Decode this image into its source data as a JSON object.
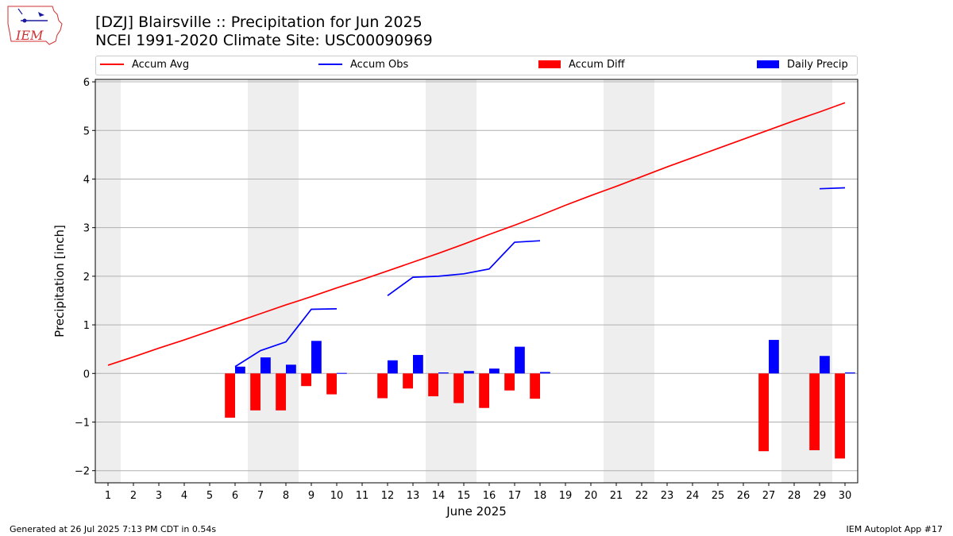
{
  "header": {
    "logo_text": "IEM",
    "title_line1": "[DZJ] Blairsville :: Precipitation for Jun 2025",
    "title_line2": "NCEI 1991-2020 Climate Site: USC00090969"
  },
  "footer": {
    "generated": "Generated at 26 Jul 2025 7:13 PM CDT in 0.54s",
    "app": "IEM Autoplot App #17"
  },
  "legend": {
    "accum_avg": "Accum Avg",
    "accum_obs": "Accum Obs",
    "accum_diff": "Accum Diff",
    "daily_precip": "Daily Precip"
  },
  "colors": {
    "avg": "#ff0000",
    "obs": "#0000ff",
    "diff": "#ff0000",
    "daily": "#0000ff",
    "weekend": "#eeeeee",
    "grid": "#b0b0b0"
  },
  "chart_data": {
    "type": "bar",
    "xlabel": "June 2025",
    "ylabel": "Precipitation [inch]",
    "xlim": [
      0.5,
      30.5
    ],
    "ylim": [
      -2.25,
      6.05
    ],
    "yticks": [
      -2,
      -1,
      0,
      1,
      2,
      3,
      4,
      5,
      6
    ],
    "ytick_labels": [
      "−2",
      "−1",
      "0",
      "1",
      "2",
      "3",
      "4",
      "5",
      "6"
    ],
    "days": [
      1,
      2,
      3,
      4,
      5,
      6,
      7,
      8,
      9,
      10,
      11,
      12,
      13,
      14,
      15,
      16,
      17,
      18,
      19,
      20,
      21,
      22,
      23,
      24,
      25,
      26,
      27,
      28,
      29,
      30
    ],
    "weekend_spans": [
      [
        0.5,
        1.5
      ],
      [
        6.5,
        8.5
      ],
      [
        13.5,
        15.5
      ],
      [
        20.5,
        22.5
      ],
      [
        27.5,
        29.5
      ]
    ],
    "accum_avg": [
      0.17,
      0.34,
      0.52,
      0.69,
      0.87,
      1.05,
      1.23,
      1.41,
      1.58,
      1.76,
      1.93,
      2.11,
      2.29,
      2.47,
      2.66,
      2.86,
      3.05,
      3.25,
      3.46,
      3.66,
      3.85,
      4.05,
      4.25,
      4.44,
      4.63,
      4.82,
      5.01,
      5.2,
      5.38,
      5.57
    ],
    "accum_obs": [
      null,
      null,
      null,
      null,
      null,
      0.14,
      0.47,
      0.65,
      1.32,
      1.33,
      null,
      1.6,
      1.98,
      2.0,
      2.05,
      2.15,
      2.7,
      2.73,
      null,
      null,
      null,
      null,
      null,
      null,
      null,
      null,
      null,
      null,
      3.8,
      3.82
    ],
    "daily_precip": [
      null,
      null,
      null,
      null,
      null,
      0.14,
      0.33,
      0.18,
      0.67,
      0.01,
      null,
      0.27,
      0.38,
      0.02,
      0.05,
      0.1,
      0.55,
      0.03,
      null,
      null,
      null,
      null,
      null,
      null,
      null,
      null,
      0.69,
      null,
      0.36,
      0.02
    ],
    "accum_diff": [
      null,
      null,
      null,
      null,
      null,
      -0.91,
      -0.76,
      -0.76,
      -0.26,
      -0.43,
      null,
      -0.51,
      -0.31,
      -0.47,
      -0.61,
      -0.71,
      -0.35,
      -0.52,
      null,
      null,
      null,
      null,
      null,
      null,
      null,
      null,
      -1.6,
      null,
      -1.58,
      -1.75
    ]
  }
}
